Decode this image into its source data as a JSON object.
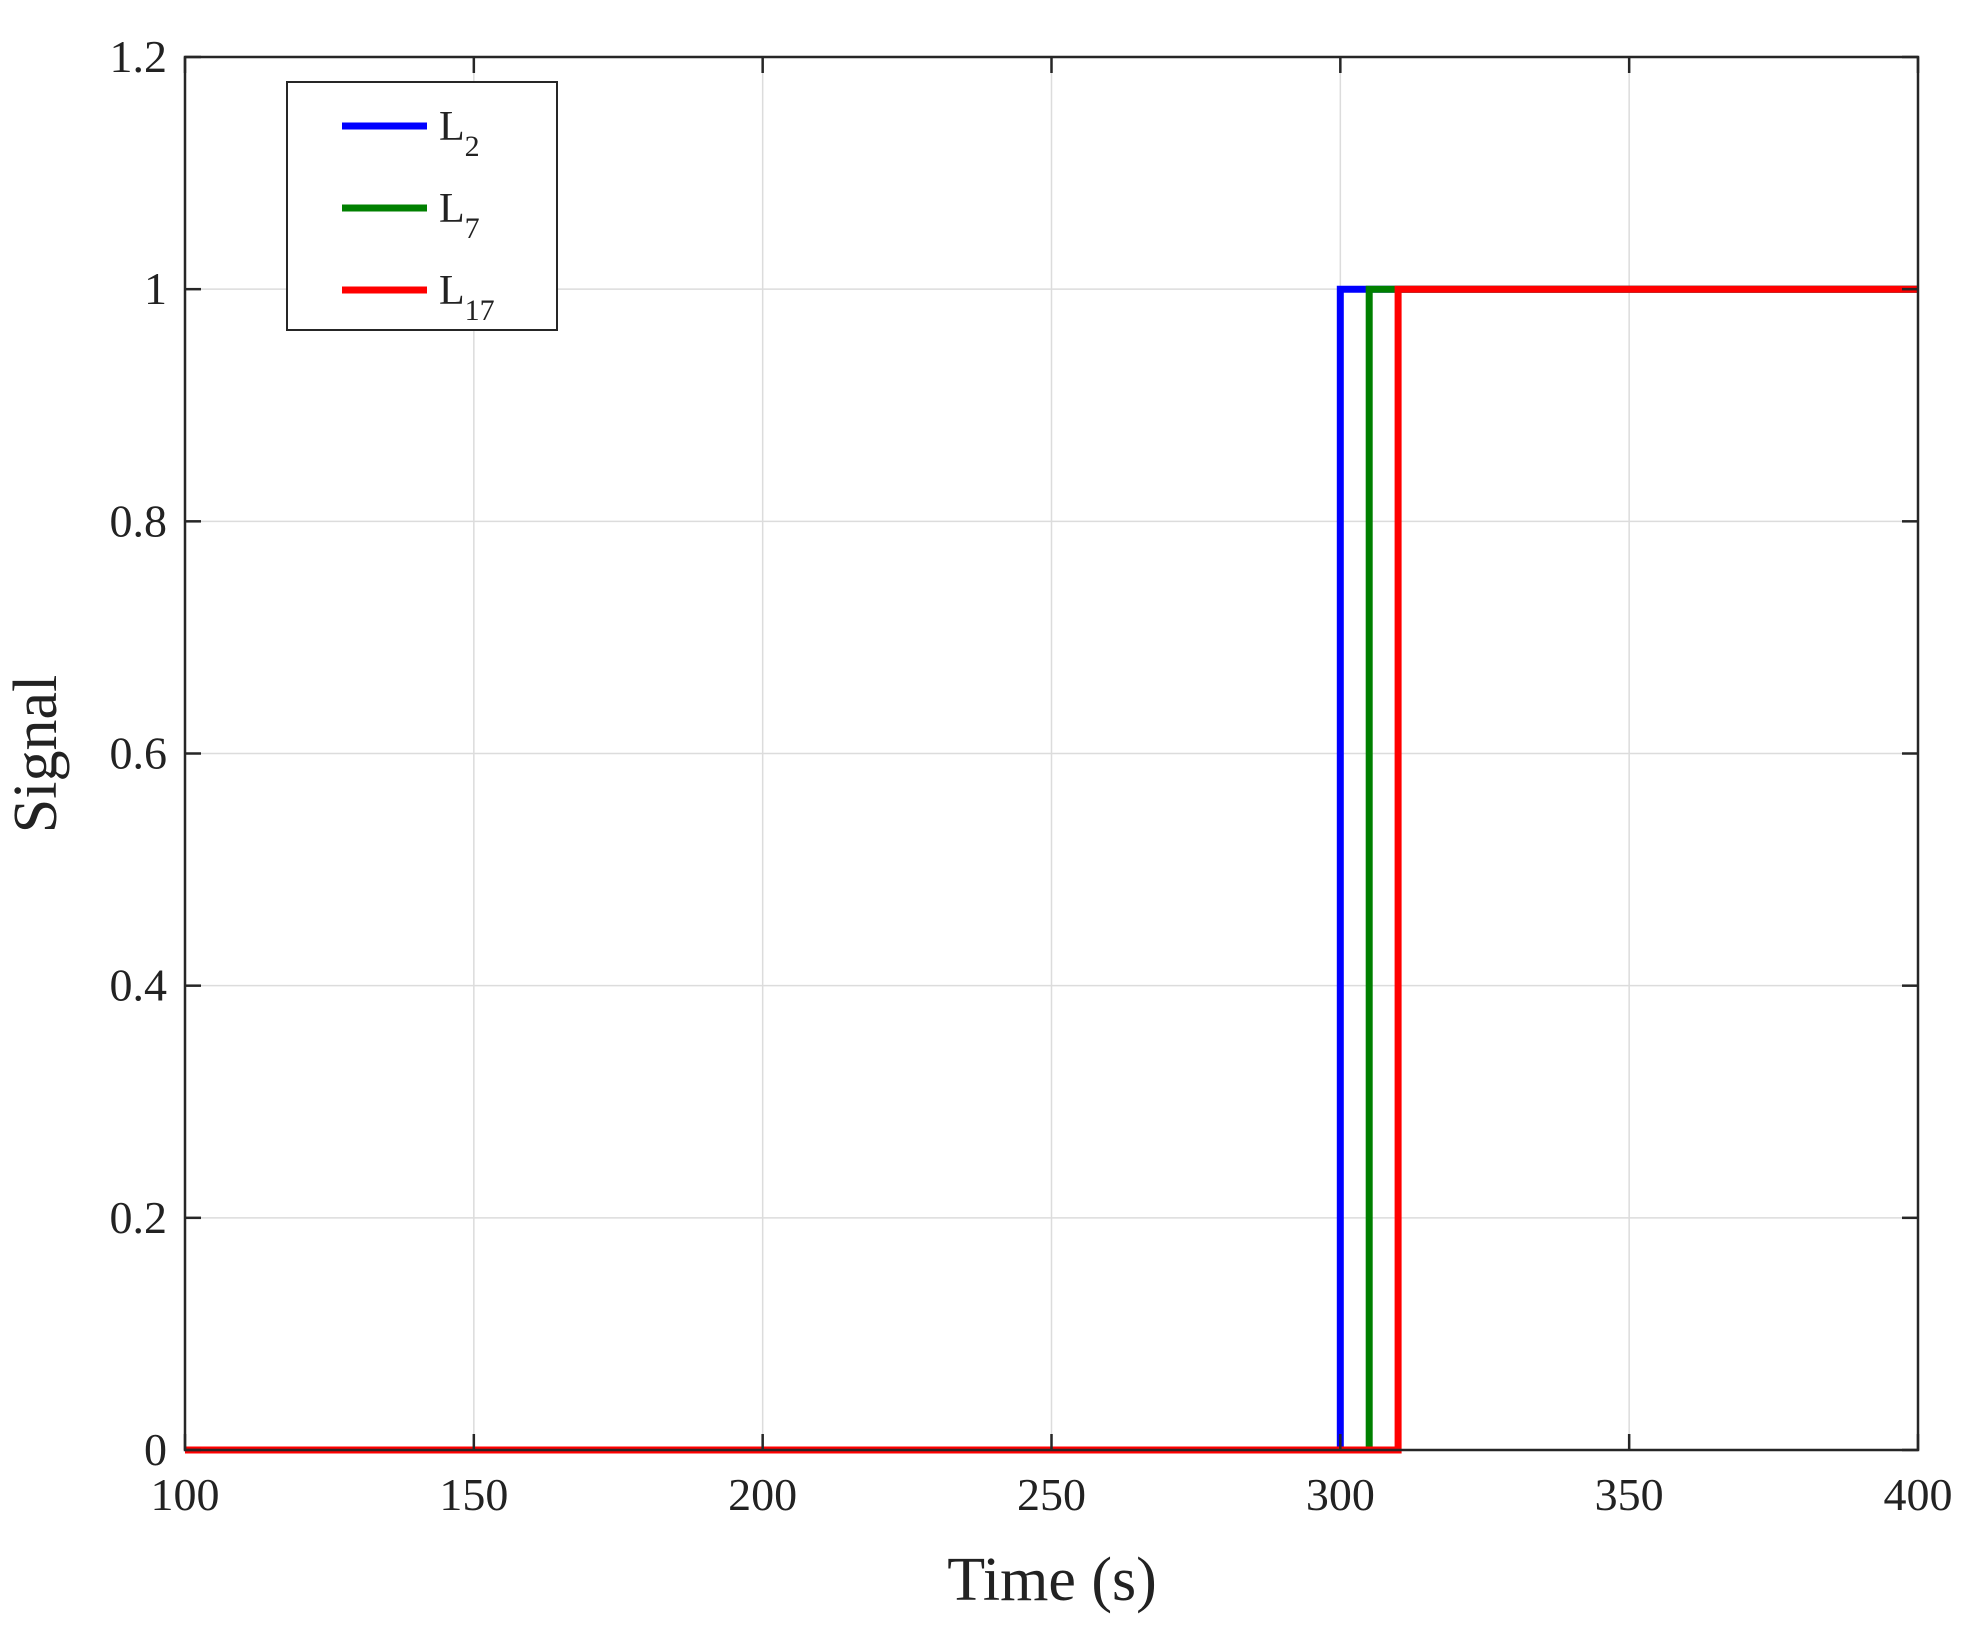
{
  "chart_data": {
    "type": "line",
    "title": "",
    "xlabel": "Time (s)",
    "ylabel": "Signal",
    "xlim": [
      100,
      400
    ],
    "ylim": [
      0,
      1.2
    ],
    "xticks": [
      100,
      150,
      200,
      250,
      300,
      350,
      400
    ],
    "xtick_labels": [
      "100",
      "150",
      "200",
      "250",
      "300",
      "350",
      "400"
    ],
    "yticks": [
      0,
      0.2,
      0.4,
      0.6,
      0.8,
      1,
      1.2
    ],
    "ytick_labels": [
      "0",
      "0.2",
      "0.4",
      "0.6",
      "0.8",
      "1",
      "1.2"
    ],
    "grid": true,
    "legend_position": "top-left",
    "series": [
      {
        "name": "L2",
        "legend_main": "L",
        "legend_sub": "2",
        "color": "#0000ff",
        "x": [
          100,
          300,
          300,
          400
        ],
        "y": [
          0,
          0,
          1,
          1
        ]
      },
      {
        "name": "L7",
        "legend_main": "L",
        "legend_sub": "7",
        "color": "#008000",
        "x": [
          100,
          305,
          305,
          400
        ],
        "y": [
          0,
          0,
          1,
          1
        ]
      },
      {
        "name": "L17",
        "legend_main": "L",
        "legend_sub": "17",
        "color": "#ff0000",
        "x": [
          100,
          310,
          310,
          400
        ],
        "y": [
          0,
          0,
          1,
          1
        ]
      }
    ]
  }
}
